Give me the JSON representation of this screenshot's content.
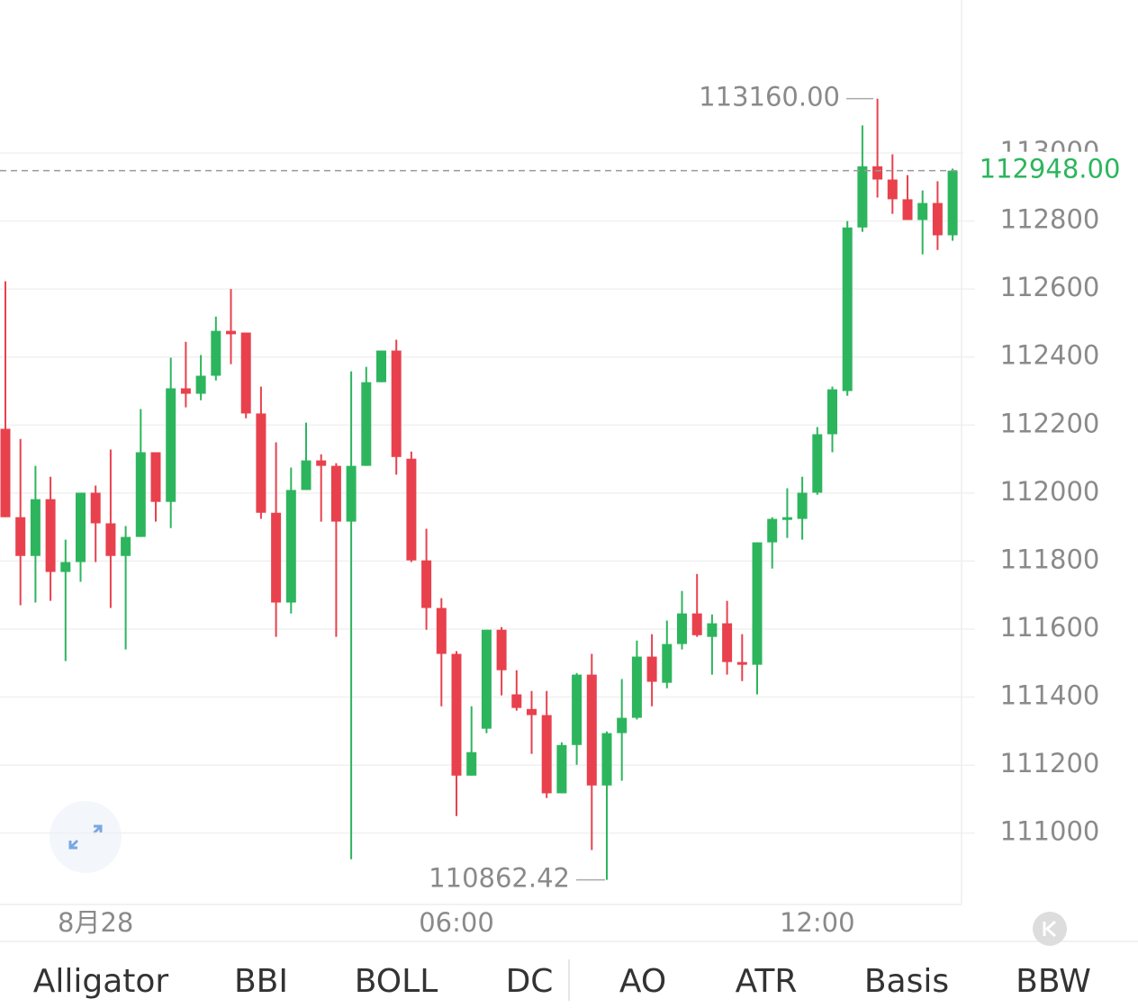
{
  "chart_data": {
    "type": "candlestick",
    "categories": [
      null,
      null,
      null,
      null,
      null,
      null,
      "8月28",
      null,
      null,
      null,
      null,
      null,
      null,
      null,
      null,
      null,
      null,
      null,
      null,
      null,
      null,
      null,
      null,
      null,
      null,
      null,
      null,
      null,
      null,
      null,
      "06:00",
      null,
      null,
      null,
      null,
      null,
      null,
      null,
      null,
      null,
      null,
      null,
      null,
      null,
      null,
      null,
      null,
      null,
      null,
      null,
      null,
      null,
      null,
      null,
      "12:00",
      null,
      null,
      null,
      null,
      null,
      null,
      null,
      null,
      null
    ],
    "open": [
      112189,
      111929,
      111815,
      111982,
      111768,
      111797,
      112001,
      111911,
      111815,
      111871,
      112120,
      111974,
      112308,
      112292,
      112345,
      112477,
      112472,
      112234,
      111942,
      111678,
      112009,
      112096,
      112080,
      111916,
      112080,
      112326,
      112419,
      112101,
      111802,
      111662,
      111527,
      111169,
      111307,
      111598,
      111408,
      111365,
      111347,
      111117,
      111259,
      111466,
      111140,
      111294,
      111339,
      111519,
      111442,
      111556,
      111646,
      111577,
      111617,
      111503,
      111495,
      111855,
      111921,
      111924,
      112001,
      112173,
      112300,
      112781,
      112961,
      112922,
      112864,
      112803,
      112853,
      112758
    ],
    "high": [
      112623,
      112159,
      112080,
      112048,
      111863,
      112001,
      112022,
      112128,
      111903,
      112247,
      112120,
      112398,
      112445,
      112406,
      112519,
      112600,
      112472,
      112313,
      112149,
      112075,
      112207,
      112114,
      112088,
      112358,
      112371,
      112419,
      112451,
      112122,
      111895,
      111691,
      111535,
      111373,
      111598,
      111606,
      111479,
      111418,
      111418,
      111267,
      111471,
      111527,
      111299,
      111453,
      111566,
      111585,
      111625,
      111712,
      111762,
      111643,
      111683,
      111585,
      111855,
      111929,
      112014,
      112048,
      112194,
      112313,
      112800,
      113081,
      113160,
      112996,
      112935,
      112890,
      112917,
      112954
    ],
    "low": [
      111929,
      111670,
      111678,
      111683,
      111506,
      111739,
      111797,
      111662,
      111540,
      111871,
      111916,
      111897,
      112252,
      112273,
      112331,
      112379,
      112220,
      111924,
      111577,
      111646,
      112009,
      111916,
      111577,
      110923,
      112080,
      112326,
      112054,
      111797,
      111598,
      111373,
      111050,
      111169,
      111294,
      111405,
      111360,
      111233,
      111103,
      111117,
      111201,
      110950,
      110862.42,
      111154,
      111334,
      111373,
      111426,
      111540,
      111577,
      111466,
      111466,
      111447,
      111408,
      111778,
      111868,
      111863,
      111995,
      112120,
      112286,
      112768,
      112869,
      112821,
      112803,
      112702,
      112715,
      112742
    ],
    "close": [
      111929,
      111815,
      111982,
      111768,
      111797,
      112001,
      111911,
      111815,
      111871,
      112120,
      111974,
      112308,
      112292,
      112345,
      112477,
      112467,
      112234,
      111942,
      111678,
      112009,
      112096,
      112080,
      111916,
      112080,
      112326,
      112419,
      112106,
      111802,
      111662,
      111527,
      111169,
      111238,
      111598,
      111479,
      111368,
      111347,
      111117,
      111259,
      111466,
      111140,
      111294,
      111339,
      111519,
      111445,
      111556,
      111646,
      111582,
      111617,
      111503,
      111495,
      111855,
      111924,
      111929,
      112001,
      112173,
      112305,
      112781,
      112961,
      112922,
      112864,
      112803,
      112853,
      112758,
      112948
    ],
    "up_color": "#2db55d",
    "down_color": "#e8414d",
    "ylim": [
      110790,
      113450
    ],
    "yticks": [
      111000,
      111200,
      111400,
      111600,
      111800,
      112000,
      112200,
      112400,
      112600,
      112800,
      113000
    ],
    "grid": true,
    "max_label": {
      "value": 113160,
      "label": "113160.00"
    },
    "min_label": {
      "value": 110862.42,
      "label": "110862.42"
    },
    "last_price": {
      "value": 112948,
      "label": "112948.00"
    }
  },
  "indicator_tabs": [
    "Alligator",
    "BBI",
    "BOLL",
    "DC",
    "AO",
    "ATR",
    "Basis",
    "BBW"
  ]
}
